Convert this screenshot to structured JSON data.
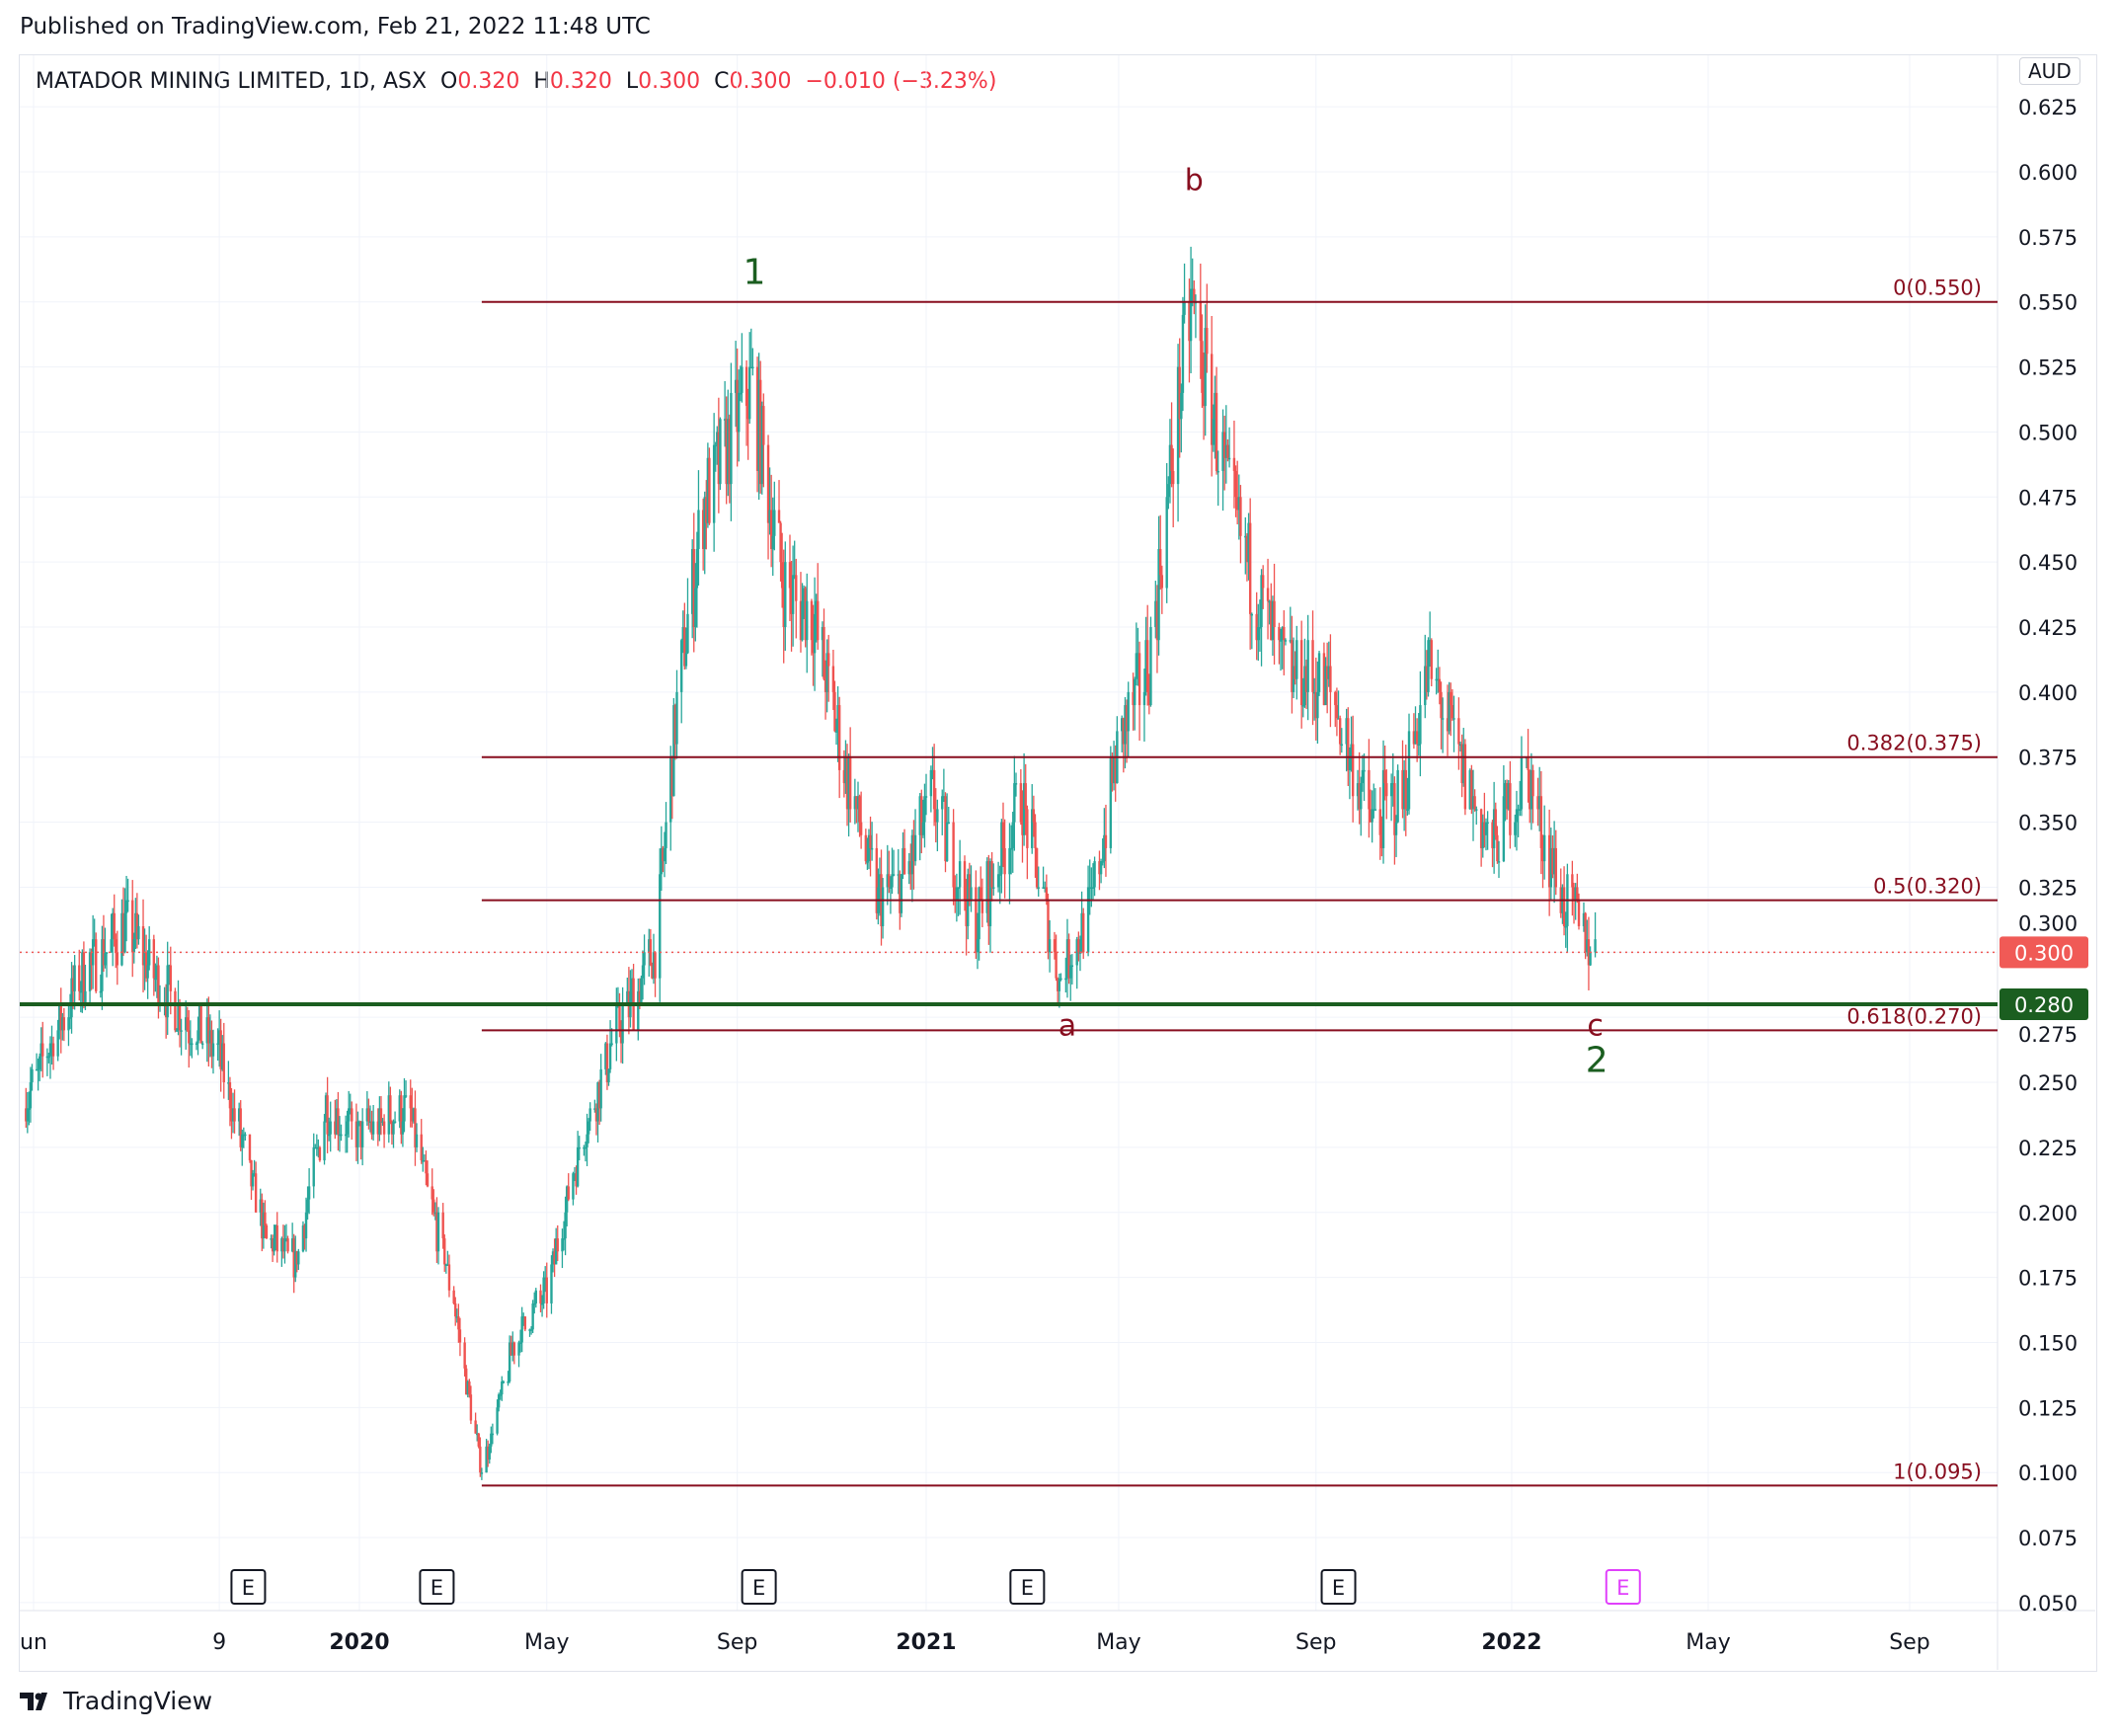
{
  "header": {
    "published": "Published on TradingView.com, Feb 21, 2022 11:48 UTC"
  },
  "legend": {
    "symbol": "MATADOR MINING LIMITED, 1D, ASX",
    "o_label": "O",
    "o": "0.320",
    "h_label": "H",
    "h": "0.320",
    "l_label": "L",
    "l": "0.300",
    "c_label": "C",
    "c": "0.300",
    "change": "−0.010 (−3.23%)"
  },
  "currency": "AUD",
  "footer": {
    "brand": "TradingView"
  },
  "colors": {
    "up": "#26a69a",
    "down": "#ef5350",
    "fib": "#880e1f",
    "green_line": "#1b5e20",
    "last_price": "#f05a56",
    "earnings_future": "#e040fb"
  },
  "chart_data": {
    "type": "candlestick",
    "ylim": [
      0.05,
      0.625
    ],
    "y_ticks": [
      "0.625",
      "0.600",
      "0.575",
      "0.550",
      "0.525",
      "0.500",
      "0.475",
      "0.450",
      "0.425",
      "0.400",
      "0.375",
      "0.350",
      "0.325",
      "0.300",
      "0.275",
      "0.250",
      "0.225",
      "0.200",
      "0.175",
      "0.150",
      "0.125",
      "0.100",
      "0.075",
      "0.050"
    ],
    "x_ticks": [
      {
        "label": "un",
        "date": "2019-06-01"
      },
      {
        "label": "9",
        "date": "2019-10-01"
      },
      {
        "label": "2020",
        "date": "2020-01-01",
        "bold": true
      },
      {
        "label": "May",
        "date": "2020-05-01"
      },
      {
        "label": "Sep",
        "date": "2020-09-01"
      },
      {
        "label": "2021",
        "date": "2021-01-01",
        "bold": true
      },
      {
        "label": "May",
        "date": "2021-05-01"
      },
      {
        "label": "Sep",
        "date": "2021-09-01"
      },
      {
        "label": "2022",
        "date": "2022-01-01",
        "bold": true
      },
      {
        "label": "May",
        "date": "2022-05-01"
      },
      {
        "label": "Sep",
        "date": "2022-09-01"
      }
    ],
    "price_path": [
      [
        "2019-05-25",
        0.24
      ],
      [
        "2019-07-01",
        0.29
      ],
      [
        "2019-08-01",
        0.31
      ],
      [
        "2019-09-01",
        0.28
      ],
      [
        "2019-10-01",
        0.26
      ],
      [
        "2019-11-01",
        0.19
      ],
      [
        "2019-11-20",
        0.18
      ],
      [
        "2019-12-10",
        0.24
      ],
      [
        "2020-01-01",
        0.23
      ],
      [
        "2020-02-01",
        0.24
      ],
      [
        "2020-03-01",
        0.17
      ],
      [
        "2020-03-20",
        0.1
      ],
      [
        "2020-04-10",
        0.15
      ],
      [
        "2020-05-01",
        0.17
      ],
      [
        "2020-05-20",
        0.22
      ],
      [
        "2020-06-15",
        0.27
      ],
      [
        "2020-07-10",
        0.3
      ],
      [
        "2020-07-25",
        0.4
      ],
      [
        "2020-08-10",
        0.47
      ],
      [
        "2020-09-10",
        0.52
      ],
      [
        "2020-10-01",
        0.44
      ],
      [
        "2020-10-20",
        0.43
      ],
      [
        "2020-11-10",
        0.37
      ],
      [
        "2020-12-01",
        0.32
      ],
      [
        "2020-12-20",
        0.33
      ],
      [
        "2021-01-05",
        0.36
      ],
      [
        "2021-02-01",
        0.31
      ],
      [
        "2021-03-01",
        0.36
      ],
      [
        "2021-03-25",
        0.29
      ],
      [
        "2021-04-15",
        0.32
      ],
      [
        "2021-05-01",
        0.38
      ],
      [
        "2021-05-20",
        0.41
      ],
      [
        "2021-06-05",
        0.5
      ],
      [
        "2021-06-15",
        0.55
      ],
      [
        "2021-07-10",
        0.47
      ],
      [
        "2021-08-10",
        0.41
      ],
      [
        "2021-09-10",
        0.4
      ],
      [
        "2021-10-05",
        0.35
      ],
      [
        "2021-10-25",
        0.36
      ],
      [
        "2021-11-10",
        0.41
      ],
      [
        "2021-12-01",
        0.37
      ],
      [
        "2021-12-20",
        0.34
      ],
      [
        "2022-01-10",
        0.37
      ],
      [
        "2022-02-01",
        0.32
      ],
      [
        "2022-02-21",
        0.3
      ]
    ],
    "last_price": {
      "label": "0.300",
      "value": 0.3
    },
    "horizontal_line": {
      "label": "0.280",
      "value": 0.28
    },
    "fib_levels": [
      {
        "label": "0(0.550)",
        "value": 0.55
      },
      {
        "label": "0.382(0.375)",
        "value": 0.375
      },
      {
        "label": "0.5(0.320)",
        "value": 0.32
      },
      {
        "label": "0.618(0.270)",
        "value": 0.27
      },
      {
        "label": "1(0.095)",
        "value": 0.095
      }
    ],
    "fib_start_date": "2020-03-20",
    "wave_labels": [
      {
        "text": "1",
        "date": "2020-09-12",
        "price": 0.557,
        "color": "green"
      },
      {
        "text": "b",
        "date": "2021-06-17",
        "price": 0.593,
        "color": "fib"
      },
      {
        "text": "a",
        "date": "2021-03-30",
        "price": 0.268,
        "color": "fib"
      },
      {
        "text": "c",
        "date": "2022-02-21",
        "price": 0.268,
        "color": "fib"
      },
      {
        "text": "2",
        "date": "2022-02-22",
        "price": 0.254,
        "color": "green"
      }
    ],
    "earnings": [
      {
        "label": "E",
        "date": "2019-10-20"
      },
      {
        "label": "E",
        "date": "2020-02-20"
      },
      {
        "label": "E",
        "date": "2020-09-15"
      },
      {
        "label": "E",
        "date": "2021-03-05"
      },
      {
        "label": "E",
        "date": "2021-09-15"
      },
      {
        "label": "E",
        "date": "2022-03-10",
        "future": true
      }
    ]
  }
}
